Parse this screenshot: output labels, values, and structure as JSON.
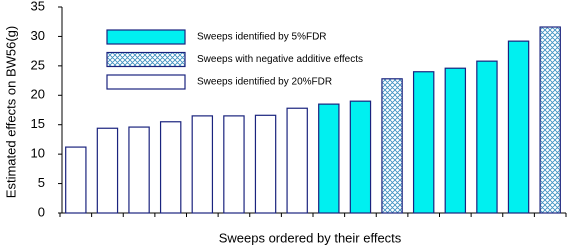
{
  "chart_data": {
    "type": "bar",
    "x_label": "Sweeps ordered by their effects",
    "y_label": "Estimated effects on BW56(g)",
    "categories": [
      null,
      null,
      null,
      null,
      null,
      null,
      null,
      null,
      null,
      null,
      null,
      null,
      null,
      null,
      null,
      null
    ],
    "series": [
      {
        "name": "Sweeps identified by 5%FDR",
        "color": "#00f0f0",
        "hatch": false,
        "values": [
          null,
          null,
          null,
          null,
          null,
          null,
          null,
          null,
          18.5,
          19.0,
          null,
          24.0,
          24.6,
          25.8,
          29.2,
          null
        ]
      },
      {
        "name": "Sweeps with negative additive effects",
        "color": "#3a8fc0",
        "hatch": true,
        "values": [
          null,
          null,
          null,
          null,
          null,
          null,
          null,
          null,
          null,
          null,
          22.8,
          null,
          null,
          null,
          null,
          31.6
        ]
      },
      {
        "name": "Sweeps identified by 20%FDR",
        "color": "#ffffff",
        "hatch": false,
        "values": [
          11.2,
          14.4,
          14.6,
          15.5,
          16.5,
          16.5,
          16.6,
          17.8,
          null,
          null,
          null,
          null,
          null,
          null,
          null,
          null
        ]
      }
    ],
    "ylim": [
      0,
      35
    ],
    "yticks": [
      0,
      5,
      10,
      15,
      20,
      25,
      30,
      35
    ],
    "grid": false
  }
}
